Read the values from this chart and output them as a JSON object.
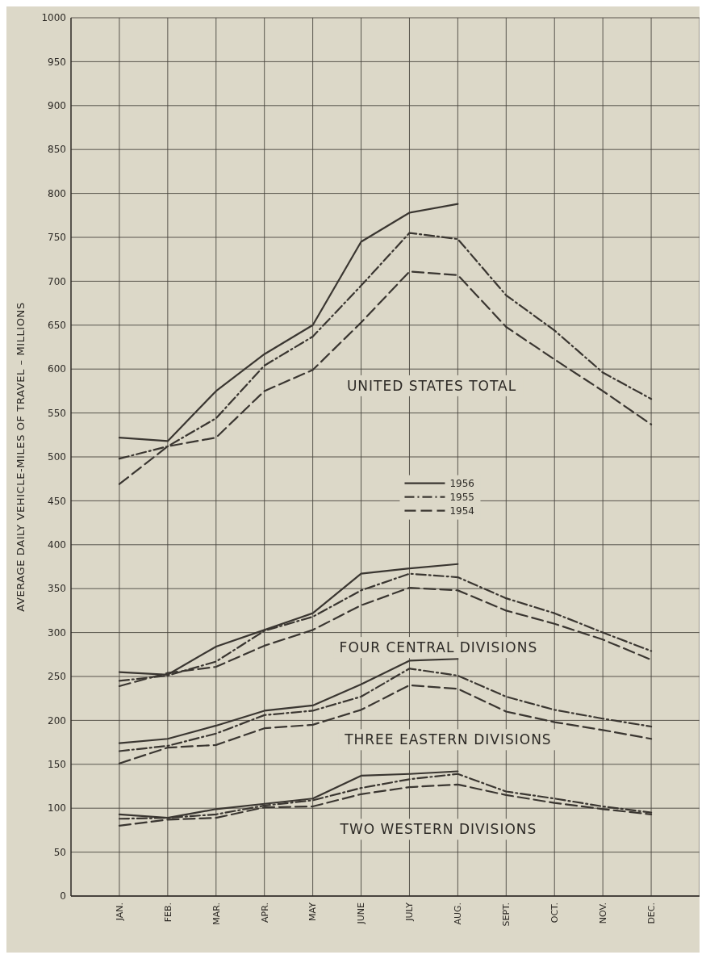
{
  "chart_data": {
    "type": "line",
    "ylabel": "AVERAGE DAILY VEHICLE-MILES OF TRAVEL – MILLIONS",
    "categories": [
      "JAN.",
      "FEB.",
      "MAR.",
      "APR.",
      "MAY",
      "JUNE",
      "JULY",
      "AUG.",
      "SEPT.",
      "OCT.",
      "NOV.",
      "DEC."
    ],
    "ylim": [
      0,
      1000
    ],
    "yticks": [
      0,
      50,
      100,
      150,
      200,
      250,
      300,
      350,
      400,
      450,
      500,
      550,
      600,
      650,
      700,
      750,
      800,
      850,
      900,
      950,
      1000
    ],
    "grid": true,
    "legend": "center",
    "series": [
      {
        "name": "1956",
        "color": "#3a3631",
        "line_style": "solid",
        "values": [
          522,
          518,
          575,
          617,
          650,
          745,
          778,
          788,
          null,
          null,
          null,
          null
        ]
      },
      {
        "name": "1955",
        "color": "#3a3631",
        "line_style": "dashdot",
        "values": [
          498,
          512,
          544,
          604,
          637,
          695,
          755,
          748,
          684,
          644,
          596,
          566
        ]
      },
      {
        "name": "1954",
        "color": "#3a3631",
        "line_style": "dashed",
        "values": [
          469,
          512,
          522,
          575,
          599,
          653,
          711,
          707,
          648,
          611,
          575,
          537
        ]
      },
      {
        "color": "#3a3631",
        "line_style": "solid",
        "values": [
          255,
          252,
          284,
          303,
          322,
          367,
          373,
          378,
          null,
          null,
          null,
          null
        ]
      },
      {
        "color": "#3a3631",
        "line_style": "dashdot",
        "values": [
          245,
          251,
          267,
          302,
          318,
          348,
          367,
          363,
          339,
          322,
          300,
          279
        ]
      },
      {
        "color": "#3a3631",
        "line_style": "dashed",
        "values": [
          239,
          254,
          261,
          285,
          303,
          331,
          351,
          348,
          325,
          310,
          292,
          269
        ]
      },
      {
        "color": "#3a3631",
        "line_style": "solid",
        "values": [
          174,
          179,
          194,
          211,
          217,
          241,
          268,
          270,
          null,
          null,
          null,
          null
        ]
      },
      {
        "color": "#3a3631",
        "line_style": "dashdot",
        "values": [
          165,
          171,
          185,
          206,
          211,
          227,
          259,
          251,
          227,
          212,
          202,
          193
        ]
      },
      {
        "color": "#3a3631",
        "line_style": "dashed",
        "values": [
          151,
          169,
          172,
          191,
          195,
          212,
          240,
          236,
          210,
          198,
          189,
          179
        ]
      },
      {
        "color": "#3a3631",
        "line_style": "solid",
        "values": [
          93,
          89,
          99,
          105,
          111,
          137,
          139,
          142,
          null,
          null,
          null,
          null
        ]
      },
      {
        "color": "#3a3631",
        "line_style": "dashdot",
        "values": [
          88,
          89,
          93,
          103,
          109,
          123,
          133,
          139,
          119,
          111,
          102,
          95
        ]
      },
      {
        "color": "#3a3631",
        "line_style": "dashed",
        "values": [
          80,
          87,
          89,
          101,
          102,
          116,
          124,
          127,
          115,
          106,
          99,
          93
        ]
      }
    ],
    "annotations": [
      "UNITED STATES TOTAL",
      "FOUR CENTRAL DIVISIONS",
      "THREE EASTERN DIVISIONS",
      "TWO WESTERN DIVISIONS"
    ]
  }
}
